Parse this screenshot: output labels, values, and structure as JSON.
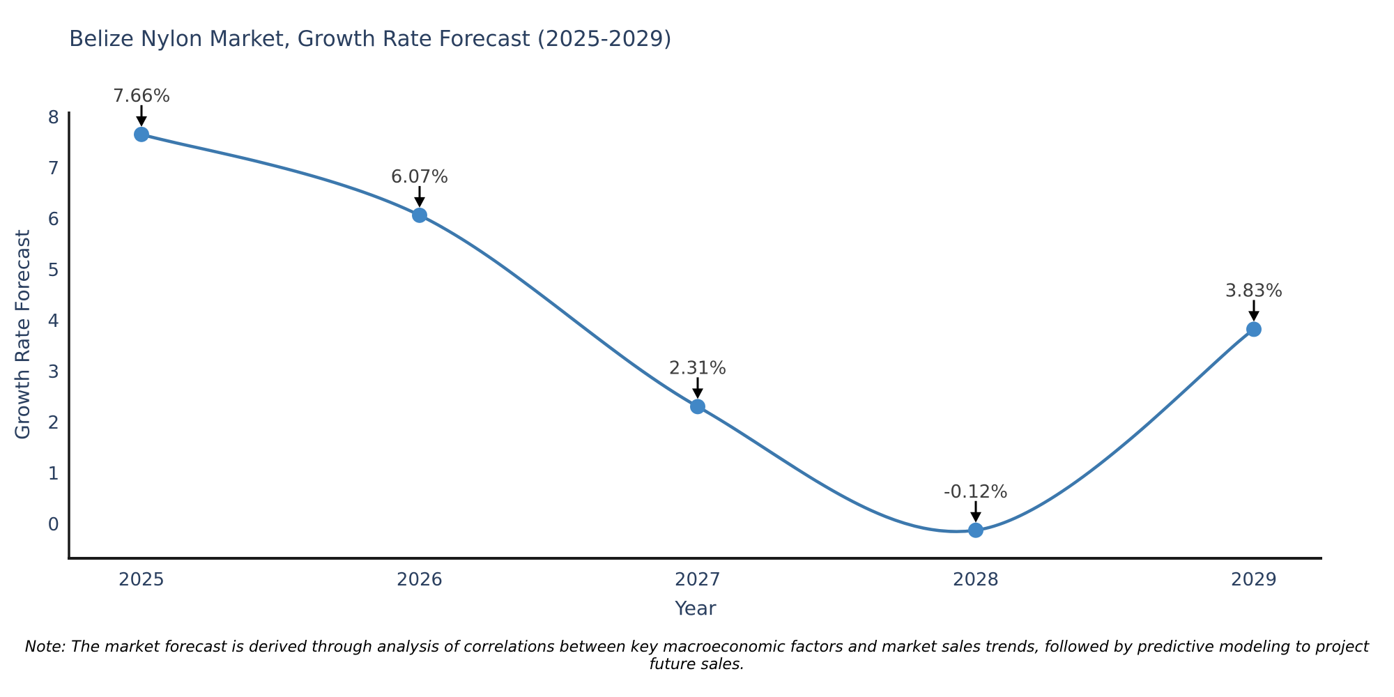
{
  "chart_data": {
    "type": "line",
    "title": "Belize Nylon Market, Growth Rate Forecast (2025-2029)",
    "xlabel": "Year",
    "ylabel": "Growth Rate Forecast",
    "categories": [
      "2025",
      "2026",
      "2027",
      "2028",
      "2029"
    ],
    "x": [
      2025,
      2026,
      2027,
      2028,
      2029
    ],
    "values": [
      7.66,
      6.07,
      2.31,
      -0.12,
      3.83
    ],
    "point_labels": [
      "7.66%",
      "6.07%",
      "2.31%",
      "-0.12%",
      "3.83%"
    ],
    "yticks": [
      0,
      1,
      2,
      3,
      4,
      5,
      6,
      7,
      8
    ],
    "ylim": [
      -0.67,
      8.11
    ],
    "grid": false,
    "legend": false,
    "line_shape": "spline",
    "colors": {
      "line": "#3c78ad",
      "marker": "#4187c6",
      "axis_line": "#1a1a1a",
      "axis_text": "#2a3f5f",
      "annotation_text": "#3d3d3d",
      "arrow": "#000000",
      "background": "#ffffff"
    },
    "note": "Note: The market forecast is derived through analysis of correlations between key macroeconomic factors and market sales trends, followed by predictive modeling to project future sales."
  }
}
